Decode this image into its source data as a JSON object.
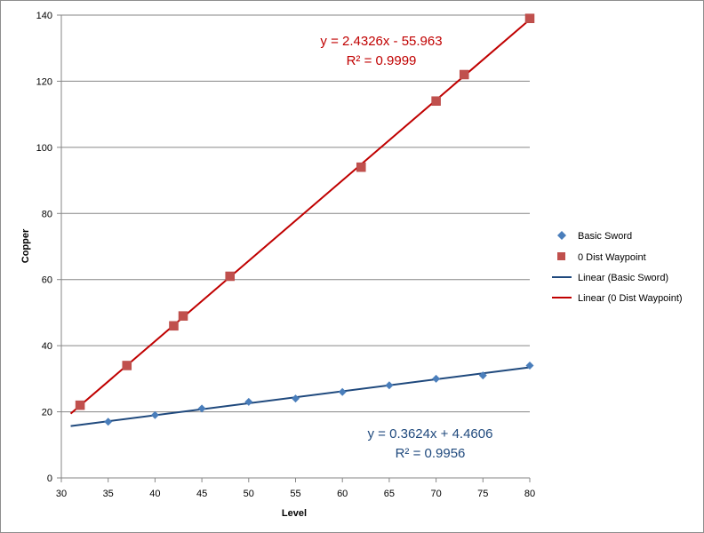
{
  "chart_data": {
    "type": "scatter",
    "title": "",
    "xlabel": "Level",
    "ylabel": "Copper",
    "xlim": [
      30,
      80
    ],
    "ylim": [
      0,
      140
    ],
    "x_ticks": [
      30,
      35,
      40,
      45,
      50,
      55,
      60,
      65,
      70,
      75,
      80
    ],
    "y_ticks": [
      0,
      20,
      40,
      60,
      80,
      100,
      120,
      140
    ],
    "grid": "horizontal major gridlines",
    "legend_position": "right",
    "series": [
      {
        "name": "Basic Sword",
        "marker": "diamond",
        "color": "#4a7ebb",
        "x": [
          35,
          40,
          45,
          50,
          55,
          60,
          65,
          70,
          75,
          80
        ],
        "y": [
          17,
          19,
          21,
          23,
          24,
          26,
          28,
          30,
          31,
          34
        ]
      },
      {
        "name": "0 Dist Waypoint",
        "marker": "square",
        "color": "#c0504d",
        "x": [
          32,
          37,
          42,
          43,
          48,
          62,
          70,
          73,
          80
        ],
        "y": [
          22,
          34,
          46,
          49,
          61,
          94,
          114,
          122,
          139
        ]
      }
    ],
    "trendlines": [
      {
        "name": "Linear (Basic Sword)",
        "type": "linear",
        "color": "#1f497d",
        "slope": 0.3624,
        "intercept": 4.4606,
        "x_range": [
          31,
          80
        ],
        "equation": "y = 0.3624x + 4.4606",
        "r_squared": "R² = 0.9956"
      },
      {
        "name": "Linear (0 Dist Waypoint)",
        "type": "linear",
        "color": "#c00000",
        "slope": 2.4326,
        "intercept": -55.963,
        "x_range": [
          31,
          80
        ],
        "equation": "y = 2.4326x - 55.963",
        "r_squared": "R² = 0.9999"
      }
    ]
  }
}
